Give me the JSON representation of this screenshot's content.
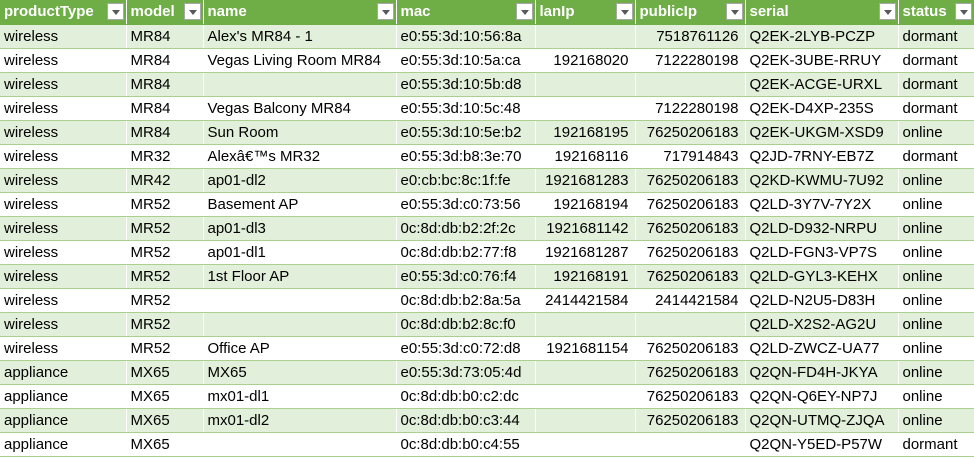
{
  "columns": [
    {
      "key": "productType",
      "label": "productType"
    },
    {
      "key": "model",
      "label": "model"
    },
    {
      "key": "name",
      "label": "name"
    },
    {
      "key": "mac",
      "label": "mac"
    },
    {
      "key": "lanIp",
      "label": "lanIp"
    },
    {
      "key": "publicIp",
      "label": "publicIp"
    },
    {
      "key": "serial",
      "label": "serial"
    },
    {
      "key": "status",
      "label": "status"
    }
  ],
  "rows": [
    [
      "wireless",
      "MR84",
      "Alex's MR84 - 1",
      "e0:55:3d:10:56:8a",
      "",
      "7518761126",
      "Q2EK-2LYB-PCZP",
      "dormant"
    ],
    [
      "wireless",
      "MR84",
      "Vegas Living Room MR84",
      "e0:55:3d:10:5a:ca",
      "192168020",
      "7122280198",
      "Q2EK-3UBE-RRUY",
      "dormant"
    ],
    [
      "wireless",
      "MR84",
      "",
      "e0:55:3d:10:5b:d8",
      "",
      "",
      "Q2EK-ACGE-URXL",
      "dormant"
    ],
    [
      "wireless",
      "MR84",
      "Vegas Balcony MR84",
      "e0:55:3d:10:5c:48",
      "",
      "7122280198",
      "Q2EK-D4XP-235S",
      "dormant"
    ],
    [
      "wireless",
      "MR84",
      "Sun Room",
      "e0:55:3d:10:5e:b2",
      "192168195",
      "76250206183",
      "Q2EK-UKGM-XSD9",
      "online"
    ],
    [
      "wireless",
      "MR32",
      "Alexâ€™s MR32",
      "e0:55:3d:b8:3e:70",
      "192168116",
      "717914843",
      "Q2JD-7RNY-EB7Z",
      "dormant"
    ],
    [
      "wireless",
      "MR42",
      "ap01-dl2",
      "e0:cb:bc:8c:1f:fe",
      "1921681283",
      "76250206183",
      "Q2KD-KWMU-7U92",
      "online"
    ],
    [
      "wireless",
      "MR52",
      "Basement AP",
      "e0:55:3d:c0:73:56",
      "192168194",
      "76250206183",
      "Q2LD-3Y7V-7Y2X",
      "online"
    ],
    [
      "wireless",
      "MR52",
      "ap01-dl3",
      "0c:8d:db:b2:2f:2c",
      "1921681142",
      "76250206183",
      "Q2LD-D932-NRPU",
      "online"
    ],
    [
      "wireless",
      "MR52",
      "ap01-dl1",
      "0c:8d:db:b2:77:f8",
      "1921681287",
      "76250206183",
      "Q2LD-FGN3-VP7S",
      "online"
    ],
    [
      "wireless",
      "MR52",
      "1st Floor AP",
      "e0:55:3d:c0:76:f4",
      "192168191",
      "76250206183",
      "Q2LD-GYL3-KEHX",
      "online"
    ],
    [
      "wireless",
      "MR52",
      "",
      "0c:8d:db:b2:8a:5a",
      "2414421584",
      "2414421584",
      "Q2LD-N2U5-D83H",
      "online"
    ],
    [
      "wireless",
      "MR52",
      "",
      "0c:8d:db:b2:8c:f0",
      "",
      "",
      "Q2LD-X2S2-AG2U",
      "online"
    ],
    [
      "wireless",
      "MR52",
      "Office AP",
      "e0:55:3d:c0:72:d8",
      "1921681154",
      "76250206183",
      "Q2LD-ZWCZ-UA77",
      "online"
    ],
    [
      "appliance",
      "MX65",
      "MX65",
      "e0:55:3d:73:05:4d",
      "",
      "76250206183",
      "Q2QN-FD4H-JKYA",
      "online"
    ],
    [
      "appliance",
      "MX65",
      "mx01-dl1",
      "0c:8d:db:b0:c2:dc",
      "",
      "76250206183",
      "Q2QN-Q6EY-NP7J",
      "online"
    ],
    [
      "appliance",
      "MX65",
      "mx01-dl2",
      "0c:8d:db:b0:c3:44",
      "",
      "76250206183",
      "Q2QN-UTMQ-ZJQA",
      "online"
    ],
    [
      "appliance",
      "MX65",
      "",
      "0c:8d:db:b0:c4:55",
      "",
      "",
      "Q2QN-Y5ED-P57W",
      "dormant"
    ]
  ]
}
